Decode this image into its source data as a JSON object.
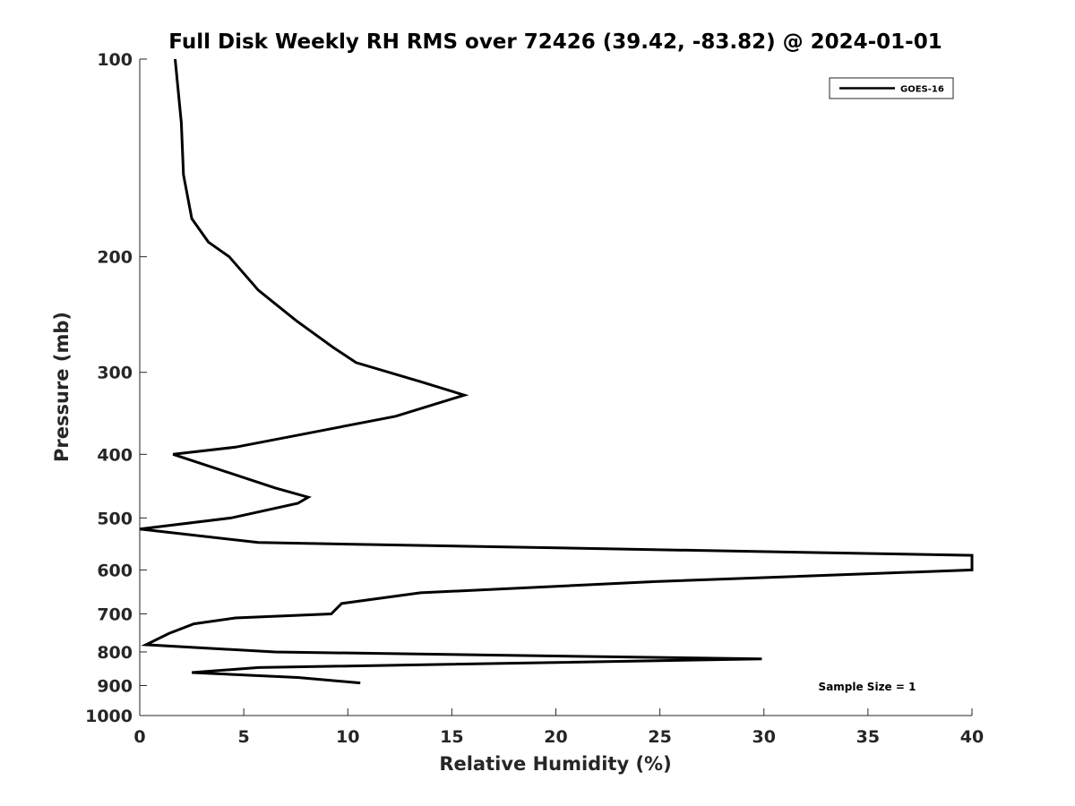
{
  "chart_data": {
    "type": "line",
    "title": "Full Disk Weekly RH RMS over 72426 (39.42, -83.82) @ 2024-01-01",
    "xlabel": "Relative Humidity (%)",
    "ylabel": "Pressure (mb)",
    "xlim": [
      0,
      40
    ],
    "ylim": [
      100,
      1000
    ],
    "y_scale": "log",
    "y_reversed": true,
    "x_ticks": [
      0,
      5,
      10,
      15,
      20,
      25,
      30,
      35,
      40
    ],
    "y_ticks": [
      100,
      200,
      300,
      400,
      500,
      600,
      700,
      800,
      900,
      1000
    ],
    "grid": false,
    "legend_position": "top-right",
    "annotation": "Sample Size = 1",
    "series": [
      {
        "name": "GOES-16",
        "color": "#000000",
        "points": [
          [
            1.7,
            100
          ],
          [
            2.0,
            125
          ],
          [
            2.1,
            150
          ],
          [
            2.5,
            175
          ],
          [
            3.3,
            190
          ],
          [
            4.3,
            200
          ],
          [
            5.7,
            225
          ],
          [
            7.5,
            250
          ],
          [
            9.3,
            275
          ],
          [
            10.4,
            290
          ],
          [
            13.5,
            310
          ],
          [
            15.6,
            325
          ],
          [
            12.3,
            350
          ],
          [
            7.4,
            375
          ],
          [
            4.6,
            390
          ],
          [
            1.6,
            400
          ],
          [
            6.5,
            450
          ],
          [
            8.1,
            465
          ],
          [
            7.6,
            475
          ],
          [
            4.4,
            500
          ],
          [
            0.0,
            520
          ],
          [
            5.7,
            545
          ],
          [
            40.0,
            570
          ],
          [
            40.0,
            600
          ],
          [
            24.8,
            625
          ],
          [
            13.5,
            650
          ],
          [
            9.7,
            675
          ],
          [
            9.2,
            700
          ],
          [
            4.6,
            710
          ],
          [
            2.6,
            725
          ],
          [
            1.4,
            750
          ],
          [
            0.3,
            780
          ],
          [
            6.5,
            800
          ],
          [
            29.9,
            820
          ],
          [
            5.7,
            845
          ],
          [
            2.5,
            860
          ],
          [
            7.6,
            875
          ],
          [
            10.6,
            892
          ]
        ]
      }
    ]
  }
}
